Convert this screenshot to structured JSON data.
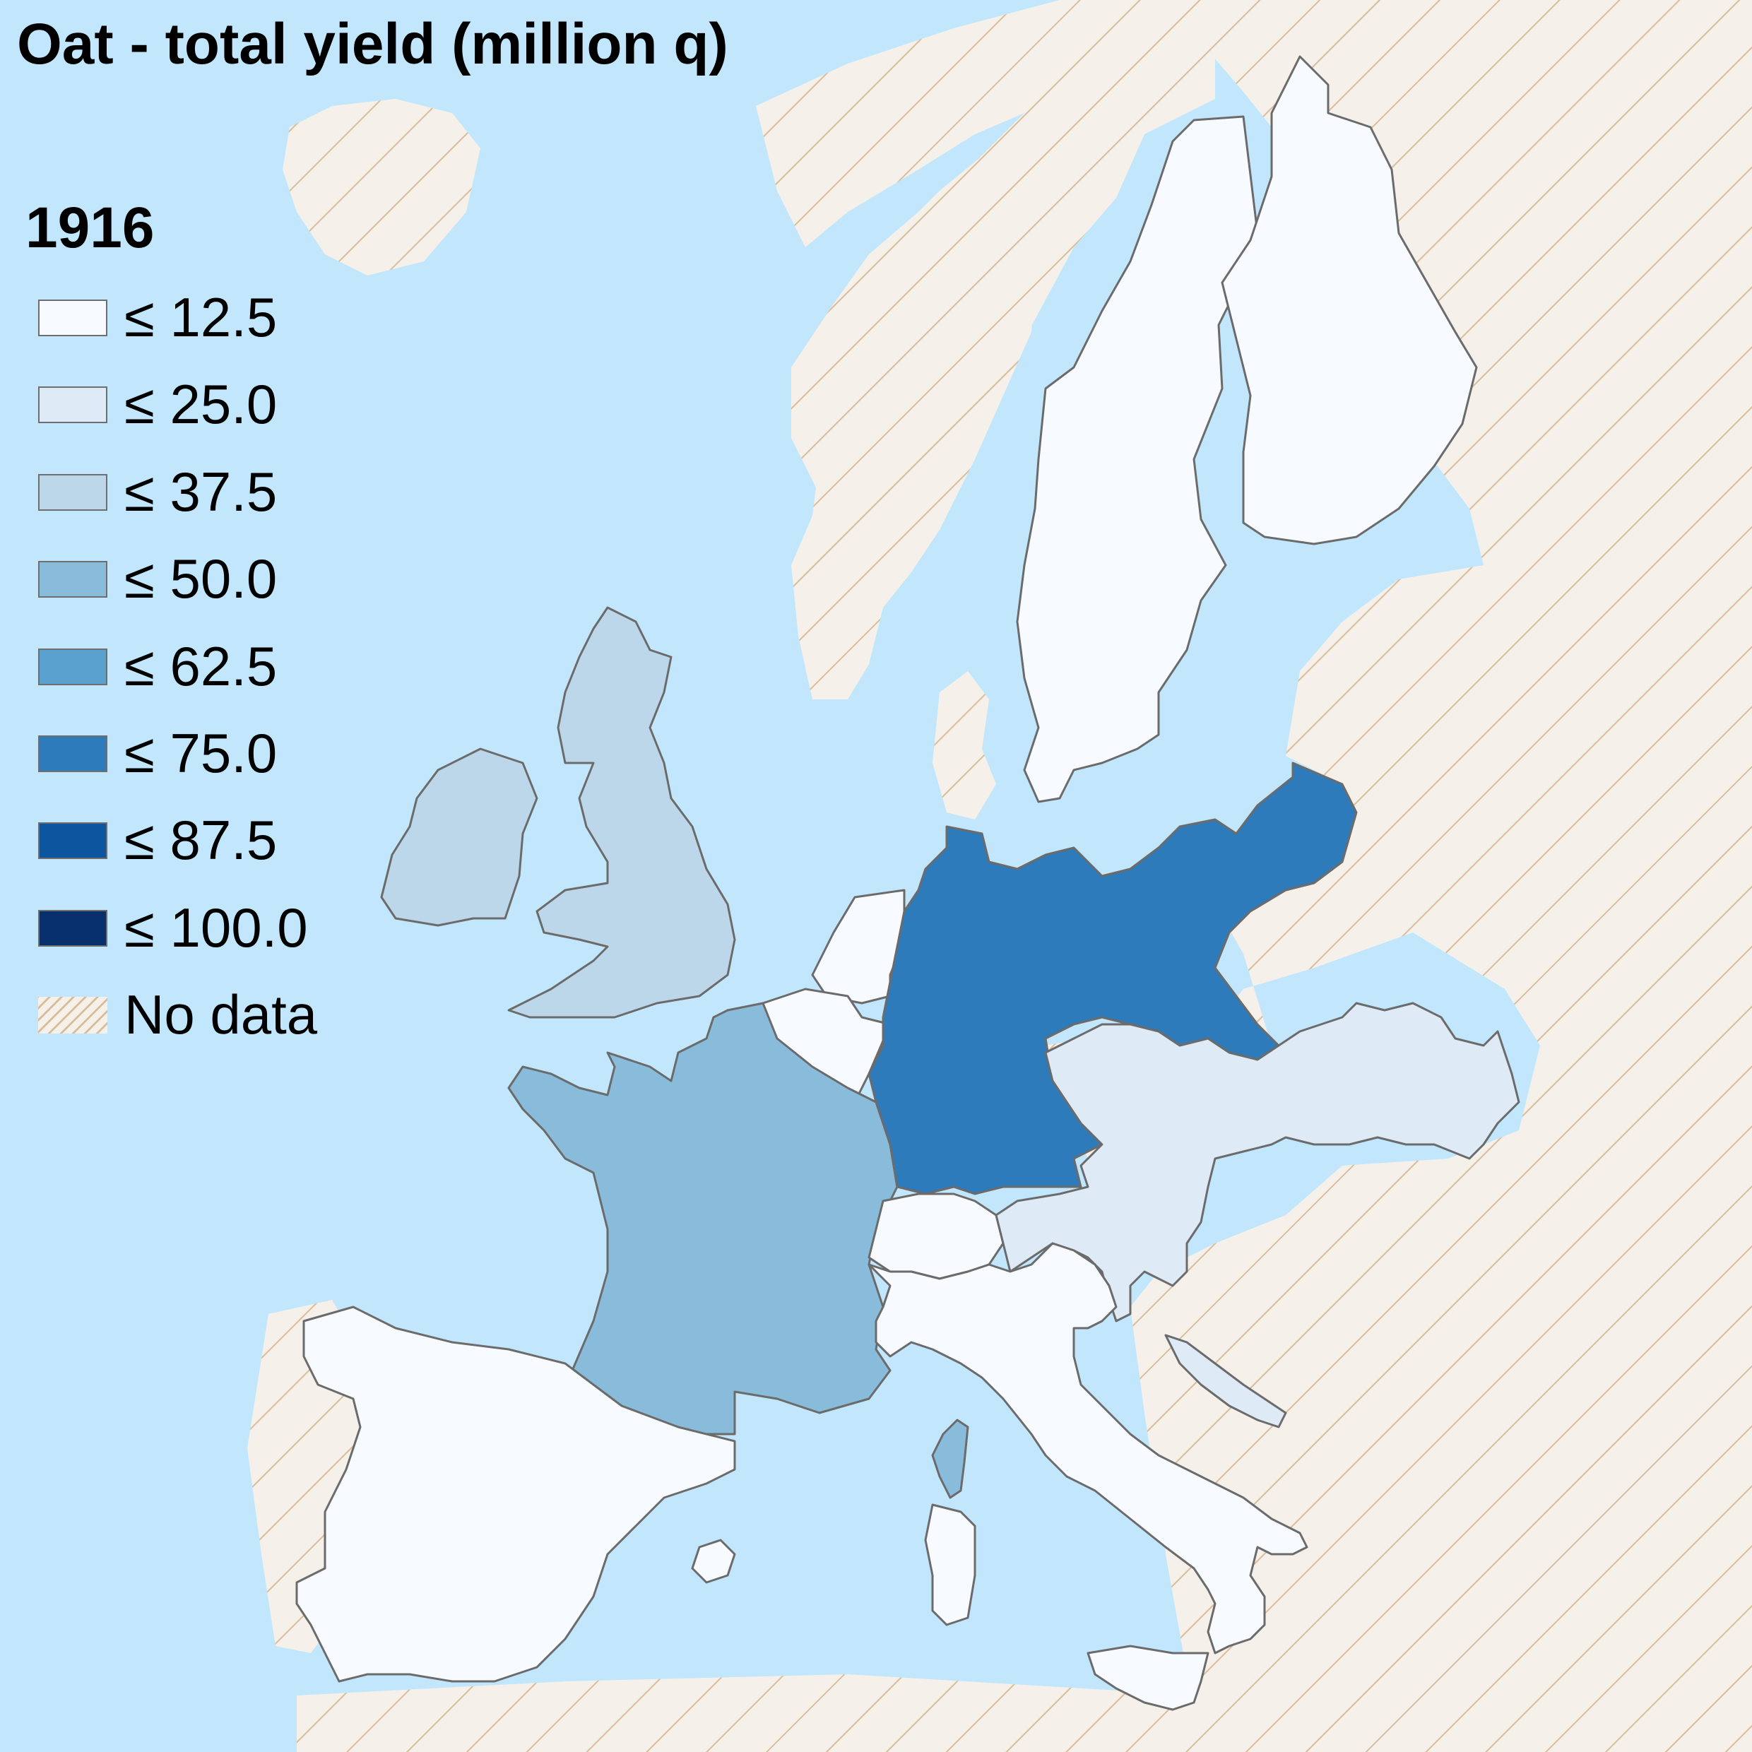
{
  "map": {
    "title": "Oat - total yield (million q)",
    "year": "1916",
    "colors": {
      "sea": "#c2e7fc",
      "no_data_base": "#f5f1ea",
      "no_data_hatch": "#d9bd9b",
      "border": "#6b6b6b"
    },
    "legend": [
      {
        "label": "≤ 12.5",
        "color": "#f7fbff"
      },
      {
        "label": "≤ 25.0",
        "color": "#deebf7"
      },
      {
        "label": "≤ 37.5",
        "color": "#bcd6ea"
      },
      {
        "label": "≤ 50.0",
        "color": "#89bbdb"
      },
      {
        "label": "≤ 62.5",
        "color": "#5ba1d0"
      },
      {
        "label": "≤ 75.0",
        "color": "#2e7bbb"
      },
      {
        "label": "≤ 87.5",
        "color": "#0c56a0"
      },
      {
        "label": "≤ 100.0",
        "color": "#072f6b"
      },
      {
        "label": "No data",
        "color": "hatched"
      }
    ],
    "regions": [
      {
        "name": "Sweden",
        "class": "≤ 12.5"
      },
      {
        "name": "Finland",
        "class": "≤ 12.5"
      },
      {
        "name": "United Kingdom",
        "class": "≤ 37.5"
      },
      {
        "name": "Ireland",
        "class": "≤ 37.5"
      },
      {
        "name": "Netherlands",
        "class": "≤ 12.5"
      },
      {
        "name": "Belgium",
        "class": "≤ 12.5"
      },
      {
        "name": "France",
        "class": "≤ 50.0"
      },
      {
        "name": "Corsica",
        "class": "≤ 50.0"
      },
      {
        "name": "Germany",
        "class": "≤ 75.0"
      },
      {
        "name": "Austria-Hungary",
        "class": "≤ 25.0"
      },
      {
        "name": "Dalmatia",
        "class": "≤ 25.0"
      },
      {
        "name": "Switzerland",
        "class": "≤ 12.5"
      },
      {
        "name": "Italy",
        "class": "≤ 12.5"
      },
      {
        "name": "Sardinia",
        "class": "≤ 12.5"
      },
      {
        "name": "Sicily",
        "class": "≤ 12.5"
      },
      {
        "name": "Spain",
        "class": "≤ 12.5"
      },
      {
        "name": "Balearic Islands",
        "class": "≤ 12.5"
      }
    ]
  }
}
